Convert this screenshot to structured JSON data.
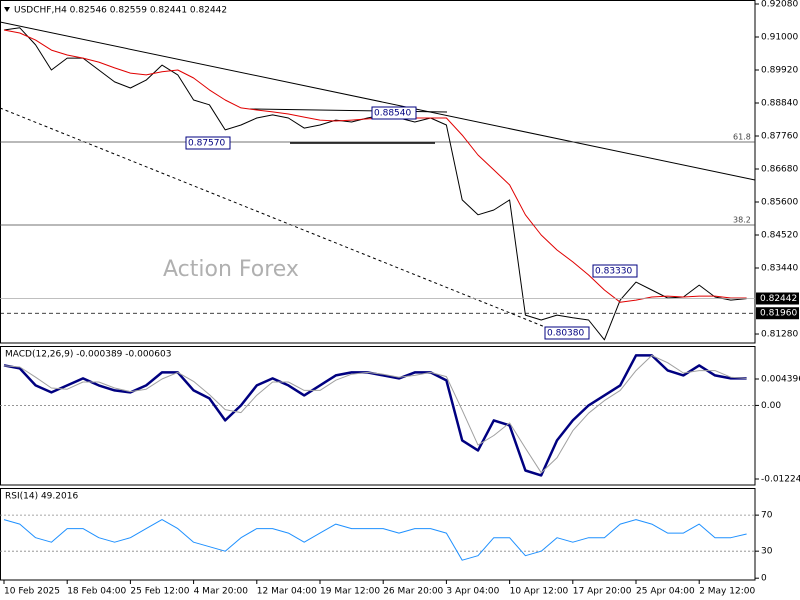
{
  "chart_data": [
    {
      "type": "line",
      "title": "USDCHF,H4 0.82546 0.82559 0.82441 0.82442",
      "categories": [
        "10 Feb 2025",
        null,
        null,
        null,
        "18 Feb 04:00",
        null,
        null,
        null,
        "25 Feb 12:00",
        null,
        null,
        null,
        "4 Mar 20:00",
        null,
        null,
        null,
        "12 Mar 04:00",
        null,
        null,
        null,
        "19 Mar 12:00",
        null,
        null,
        null,
        "26 Mar 20:00",
        null,
        null,
        null,
        "3 Apr 04:00",
        null,
        null,
        null,
        "10 Apr 12:00",
        null,
        null,
        null,
        "17 Apr 20:00",
        null,
        null,
        null,
        "25 Apr 04:00",
        null,
        null,
        null,
        "2 May 12:00",
        null,
        null,
        null
      ],
      "series": [
        {
          "color": "#000000",
          "values": [
            0.9123,
            0.913,
            0.9074,
            0.8992,
            0.9031,
            0.9031,
            0.8992,
            0.8953,
            0.8933,
            0.8959,
            0.9008,
            0.8976,
            0.8894,
            0.8878,
            0.8796,
            0.8812,
            0.8835,
            0.8845,
            0.8835,
            0.8802,
            0.8812,
            0.8828,
            0.8822,
            0.8835,
            0.8845,
            0.8835,
            0.8822,
            0.8835,
            0.8812,
            0.8567,
            0.8518,
            0.8534,
            0.8567,
            0.819,
            0.8174,
            0.819,
            0.8181,
            0.8174,
            0.8109,
            0.8239,
            0.8298,
            0.8272,
            0.8246,
            0.8249,
            0.8288,
            0.8249,
            0.8239,
            0.8244
          ]
        },
        {
          "color": "#e00000",
          "values": [
            0.9123,
            0.9113,
            0.909,
            0.9057,
            0.9041,
            0.9031,
            0.9018,
            0.8999,
            0.8982,
            0.8976,
            0.8986,
            0.8992,
            0.8966,
            0.8927,
            0.8894,
            0.8868,
            0.8861,
            0.8855,
            0.8848,
            0.8838,
            0.8828,
            0.8825,
            0.8828,
            0.8832,
            0.8835,
            0.8835,
            0.8835,
            0.8835,
            0.8835,
            0.8779,
            0.8714,
            0.8665,
            0.8616,
            0.8518,
            0.8452,
            0.8403,
            0.8364,
            0.8321,
            0.8272,
            0.8232,
            0.8239,
            0.8249,
            0.8252,
            0.8249,
            0.8252,
            0.8252,
            0.8246,
            0.8246
          ]
        }
      ],
      "ylim": [
        0.80986,
        0.92211
      ],
      "yticks": [
        {
          "value": 0.9208,
          "label": "0.92080"
        },
        {
          "value": 0.91,
          "label": "0.91000"
        },
        {
          "value": 0.8992,
          "label": "0.89920"
        },
        {
          "value": 0.8884,
          "label": "0.88840"
        },
        {
          "value": 0.8776,
          "label": "0.87760"
        },
        {
          "value": 0.8668,
          "label": "0.86680"
        },
        {
          "value": 0.856,
          "label": "0.85600"
        },
        {
          "value": 0.8452,
          "label": "0.84520"
        },
        {
          "value": 0.8344,
          "label": "0.83440"
        },
        {
          "value": 0.8128,
          "label": "0.81280"
        }
      ],
      "price_lines": [
        {
          "value": 0.82442,
          "label": "0.82442",
          "style": "solid"
        },
        {
          "value": 0.8196,
          "label": "0.81960",
          "style": "dashed"
        }
      ],
      "annotations": [
        "0.87570",
        "0.88540",
        "0.83330",
        "0.80380"
      ],
      "fib_labels": [
        "61.8",
        "38.2"
      ],
      "watermark": "Action Forex"
    },
    {
      "type": "line",
      "title": "MACD(12,26,9) -0.000389 -0.000603",
      "series": [
        {
          "color": "#000080",
          "values": [
            0.00666,
            0.00616,
            0.00333,
            0.00216,
            0.00333,
            0.00449,
            0.00333,
            0.0025,
            0.00216,
            0.00333,
            0.00549,
            0.00549,
            0.0025,
            0.00116,
            -0.0025,
            0,
            0.00333,
            0.00449,
            0.00333,
            0.00166,
            0.00333,
            0.00499,
            0.00549,
            0.00549,
            0.00499,
            0.00449,
            0.00549,
            0.00549,
            0.00416,
            -0.00582,
            -0.00749,
            -0.0025,
            -0.00333,
            -0.01082,
            -0.01165,
            -0.00582,
            -0.0025,
            0,
            0.00166,
            0.00333,
            0.00832,
            0.00832,
            0.00582,
            0.00499,
            0.00666,
            0.00499,
            0.00449,
            0.00449
          ]
        },
        {
          "color": "#a0a0a0",
          "values": [
            0.0066,
            0.0064,
            0.0047,
            0.0029,
            0.0027,
            0.0039,
            0.0039,
            0.0029,
            0.0023,
            0.0027,
            0.0044,
            0.0055,
            0.004,
            0.0018,
            -0.0007,
            -0.0012,
            0.0017,
            0.0039,
            0.0039,
            0.0025,
            0.0025,
            0.0042,
            0.0052,
            0.0055,
            0.0052,
            0.0047,
            0.005,
            0.0055,
            0.0048,
            -0.0008,
            -0.0066,
            -0.005,
            -0.0029,
            -0.0071,
            -0.0112,
            -0.0087,
            -0.0042,
            -0.0013,
            0.0008,
            0.0025,
            0.0058,
            0.0083,
            0.0071,
            0.0054,
            0.0058,
            0.0058,
            0.0047,
            0.0045
          ]
        }
      ],
      "ylim": [
        -0.01324,
        0.00972
      ],
      "yticks": [
        0.004396,
        {
          "value": 0,
          "label": "0.00"
        },
        -0.012244
      ],
      "levels": [
        0
      ]
    },
    {
      "type": "line",
      "title": "RSI(14) 49.2016",
      "series": [
        {
          "color": "#1e90ff",
          "values": [
            65,
            60,
            45,
            40,
            55,
            55,
            45,
            40,
            45,
            55,
            65,
            55,
            40,
            35,
            30,
            45,
            55,
            55,
            50,
            40,
            50,
            60,
            55,
            55,
            55,
            50,
            55,
            55,
            50,
            20,
            25,
            45,
            45,
            25,
            30,
            45,
            40,
            45,
            45,
            60,
            65,
            60,
            50,
            50,
            60,
            45,
            45,
            49
          ]
        }
      ],
      "ylim": [
        -2,
        99
      ],
      "yticks": [
        70,
        30,
        0
      ],
      "levels": [
        70,
        30
      ]
    }
  ]
}
